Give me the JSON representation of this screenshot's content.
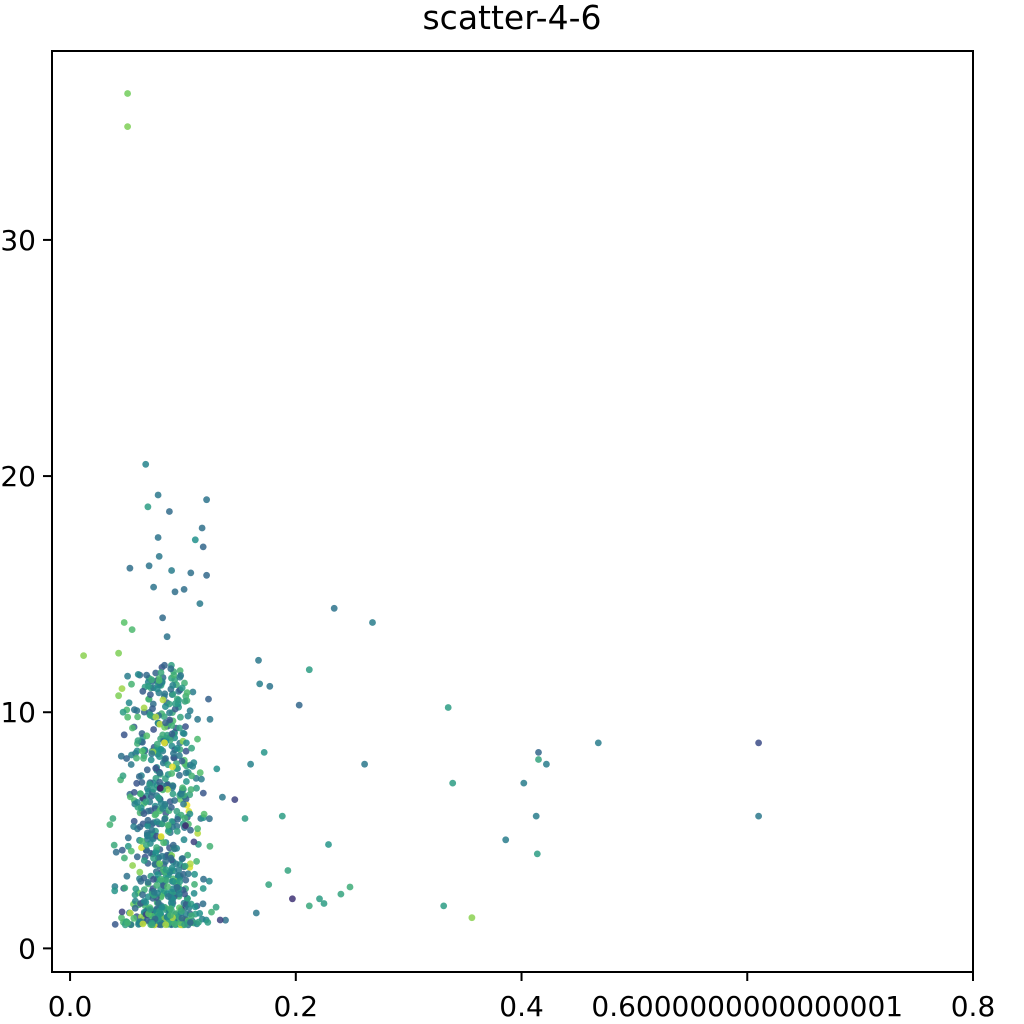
{
  "chart_data": {
    "type": "scatter",
    "title": "scatter-4-6",
    "xlabel": "",
    "ylabel": "",
    "xlim": [
      -0.016,
      0.8
    ],
    "ylim": [
      -1.0,
      38.0
    ],
    "x_ticks": [
      {
        "value": 0.0,
        "label": "0.0"
      },
      {
        "value": 0.2,
        "label": "0.2"
      },
      {
        "value": 0.4,
        "label": "0.4"
      },
      {
        "value": 0.6000000000000001,
        "label": "0.6000000000000001"
      },
      {
        "value": 0.8,
        "label": "0.8"
      }
    ],
    "y_ticks": [
      {
        "value": 0,
        "label": "0"
      },
      {
        "value": 10,
        "label": "10"
      },
      {
        "value": 20,
        "label": "20"
      },
      {
        "value": 30,
        "label": "30"
      }
    ],
    "grid": false,
    "legend": "none",
    "colormap": "viridis",
    "points": [
      {
        "x": 0.051,
        "y": 36.2,
        "c": 0.78
      },
      {
        "x": 0.051,
        "y": 34.8,
        "c": 0.8
      },
      {
        "x": 0.067,
        "y": 20.5,
        "c": 0.45
      },
      {
        "x": 0.078,
        "y": 19.2,
        "c": 0.4
      },
      {
        "x": 0.121,
        "y": 19.0,
        "c": 0.38
      },
      {
        "x": 0.069,
        "y": 18.7,
        "c": 0.55
      },
      {
        "x": 0.088,
        "y": 18.5,
        "c": 0.35
      },
      {
        "x": 0.117,
        "y": 17.8,
        "c": 0.37
      },
      {
        "x": 0.111,
        "y": 17.3,
        "c": 0.5
      },
      {
        "x": 0.078,
        "y": 17.4,
        "c": 0.38
      },
      {
        "x": 0.118,
        "y": 17.0,
        "c": 0.33
      },
      {
        "x": 0.079,
        "y": 16.6,
        "c": 0.4
      },
      {
        "x": 0.053,
        "y": 16.1,
        "c": 0.36
      },
      {
        "x": 0.07,
        "y": 16.2,
        "c": 0.38
      },
      {
        "x": 0.09,
        "y": 16.0,
        "c": 0.42
      },
      {
        "x": 0.121,
        "y": 15.8,
        "c": 0.34
      },
      {
        "x": 0.107,
        "y": 15.9,
        "c": 0.37
      },
      {
        "x": 0.074,
        "y": 15.3,
        "c": 0.38
      },
      {
        "x": 0.093,
        "y": 15.1,
        "c": 0.36
      },
      {
        "x": 0.101,
        "y": 15.2,
        "c": 0.36
      },
      {
        "x": 0.115,
        "y": 14.6,
        "c": 0.41
      },
      {
        "x": 0.234,
        "y": 14.4,
        "c": 0.38
      },
      {
        "x": 0.268,
        "y": 13.8,
        "c": 0.42
      },
      {
        "x": 0.082,
        "y": 14.0,
        "c": 0.35
      },
      {
        "x": 0.055,
        "y": 13.5,
        "c": 0.68
      },
      {
        "x": 0.048,
        "y": 13.8,
        "c": 0.72
      },
      {
        "x": 0.086,
        "y": 13.2,
        "c": 0.38
      },
      {
        "x": 0.012,
        "y": 12.4,
        "c": 0.82
      },
      {
        "x": 0.043,
        "y": 12.5,
        "c": 0.8
      },
      {
        "x": 0.167,
        "y": 12.2,
        "c": 0.4
      },
      {
        "x": 0.212,
        "y": 11.8,
        "c": 0.55
      },
      {
        "x": 0.168,
        "y": 11.2,
        "c": 0.43
      },
      {
        "x": 0.177,
        "y": 11.1,
        "c": 0.38
      },
      {
        "x": 0.046,
        "y": 11.0,
        "c": 0.85
      },
      {
        "x": 0.043,
        "y": 10.7,
        "c": 0.8
      },
      {
        "x": 0.203,
        "y": 10.3,
        "c": 0.33
      },
      {
        "x": 0.335,
        "y": 10.2,
        "c": 0.55
      },
      {
        "x": 0.047,
        "y": 10.0,
        "c": 0.55
      },
      {
        "x": 0.076,
        "y": 9.8,
        "c": 0.88
      },
      {
        "x": 0.113,
        "y": 9.7,
        "c": 0.4
      },
      {
        "x": 0.124,
        "y": 9.7,
        "c": 0.4
      },
      {
        "x": 0.068,
        "y": 9.0,
        "c": 0.7
      },
      {
        "x": 0.468,
        "y": 8.7,
        "c": 0.42
      },
      {
        "x": 0.61,
        "y": 8.7,
        "c": 0.23
      },
      {
        "x": 0.415,
        "y": 8.3,
        "c": 0.33
      },
      {
        "x": 0.415,
        "y": 8.0,
        "c": 0.58
      },
      {
        "x": 0.172,
        "y": 8.3,
        "c": 0.52
      },
      {
        "x": 0.16,
        "y": 7.8,
        "c": 0.44
      },
      {
        "x": 0.261,
        "y": 7.8,
        "c": 0.4
      },
      {
        "x": 0.422,
        "y": 7.8,
        "c": 0.42
      },
      {
        "x": 0.13,
        "y": 7.6,
        "c": 0.5
      },
      {
        "x": 0.339,
        "y": 7.0,
        "c": 0.55
      },
      {
        "x": 0.402,
        "y": 7.0,
        "c": 0.42
      },
      {
        "x": 0.135,
        "y": 6.4,
        "c": 0.4
      },
      {
        "x": 0.146,
        "y": 6.3,
        "c": 0.2
      },
      {
        "x": 0.188,
        "y": 5.6,
        "c": 0.55
      },
      {
        "x": 0.155,
        "y": 5.5,
        "c": 0.55
      },
      {
        "x": 0.413,
        "y": 5.6,
        "c": 0.42
      },
      {
        "x": 0.61,
        "y": 5.6,
        "c": 0.4
      },
      {
        "x": 0.038,
        "y": 5.5,
        "c": 0.6
      },
      {
        "x": 0.386,
        "y": 4.6,
        "c": 0.42
      },
      {
        "x": 0.229,
        "y": 4.4,
        "c": 0.52
      },
      {
        "x": 0.414,
        "y": 4.0,
        "c": 0.55
      },
      {
        "x": 0.193,
        "y": 3.3,
        "c": 0.58
      },
      {
        "x": 0.176,
        "y": 2.7,
        "c": 0.58
      },
      {
        "x": 0.248,
        "y": 2.6,
        "c": 0.62
      },
      {
        "x": 0.24,
        "y": 2.3,
        "c": 0.58
      },
      {
        "x": 0.197,
        "y": 2.1,
        "c": 0.15
      },
      {
        "x": 0.221,
        "y": 2.1,
        "c": 0.55
      },
      {
        "x": 0.225,
        "y": 1.9,
        "c": 0.55
      },
      {
        "x": 0.212,
        "y": 1.8,
        "c": 0.6
      },
      {
        "x": 0.331,
        "y": 1.8,
        "c": 0.55
      },
      {
        "x": 0.356,
        "y": 1.3,
        "c": 0.82
      },
      {
        "x": 0.165,
        "y": 1.5,
        "c": 0.4
      },
      {
        "x": 0.133,
        "y": 1.2,
        "c": 0.2
      },
      {
        "x": 0.122,
        "y": 1.1,
        "c": 0.55
      }
    ],
    "dense_cluster": {
      "description_only_for_generation": false,
      "x_center": 0.082,
      "x_spread": 0.018,
      "y_min": 1.0,
      "y_max": 12.0,
      "count": 700
    }
  }
}
